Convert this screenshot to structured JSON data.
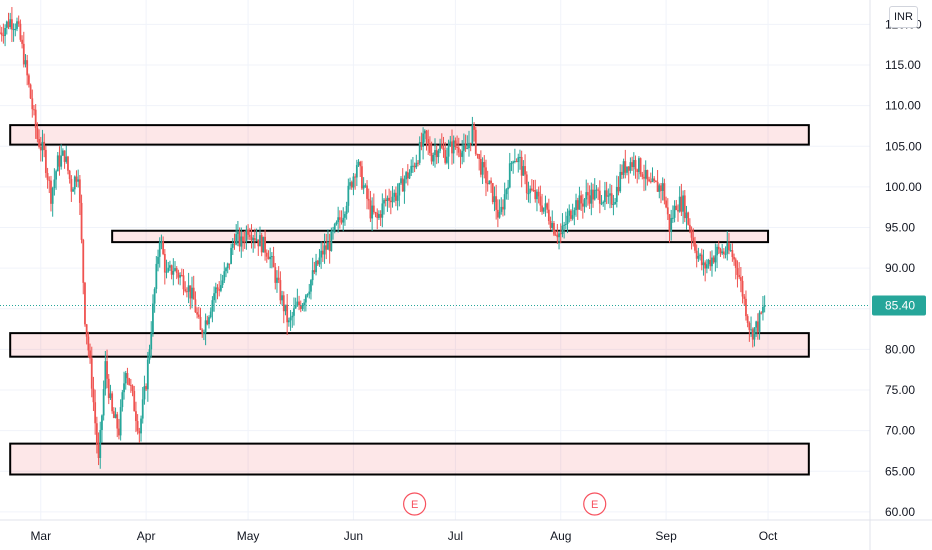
{
  "chart_data": {
    "type": "candlestick",
    "currency": "INR",
    "last_price": "85.40",
    "ylim": [
      59,
      123
    ],
    "y_ticks": [
      "60.00",
      "65.00",
      "70.00",
      "75.00",
      "80.00",
      "85.00",
      "90.00",
      "95.00",
      "100.00",
      "105.00",
      "110.00",
      "115.00",
      "120.00"
    ],
    "x_ticks": [
      {
        "label": "Mar",
        "day": 7
      },
      {
        "label": "Apr",
        "day": 38
      },
      {
        "label": "May",
        "day": 68
      },
      {
        "label": "Jun",
        "day": 99
      },
      {
        "label": "Jul",
        "day": 129
      },
      {
        "label": "Aug",
        "day": 160
      },
      {
        "label": "Sep",
        "day": 191
      },
      {
        "label": "Oct",
        "day": 221
      }
    ],
    "xlim_days": [
      -5,
      251
    ],
    "earnings_markers": [
      {
        "label": "E",
        "day": 117
      },
      {
        "label": "E",
        "day": 170
      }
    ],
    "zones": [
      {
        "top": 107.6,
        "bottom": 105.2,
        "x_start_day": -2,
        "x_end_day": 233
      },
      {
        "top": 94.6,
        "bottom": 93.2,
        "x_start_day": 28,
        "x_end_day": 221
      },
      {
        "top": 82.0,
        "bottom": 79.1,
        "x_start_day": -2,
        "x_end_day": 233
      },
      {
        "top": 68.4,
        "bottom": 64.6,
        "x_start_day": -2,
        "x_end_day": 233
      }
    ],
    "price_path": [
      [
        -5,
        119
      ],
      [
        -2,
        120.5
      ],
      [
        0,
        120
      ],
      [
        2,
        116
      ],
      [
        4,
        111
      ],
      [
        6,
        106
      ],
      [
        8,
        104
      ],
      [
        10,
        99
      ],
      [
        12,
        103
      ],
      [
        14,
        104
      ],
      [
        16,
        100
      ],
      [
        18,
        102
      ],
      [
        20,
        84
      ],
      [
        22,
        76
      ],
      [
        24,
        66
      ],
      [
        26,
        78
      ],
      [
        28,
        72
      ],
      [
        30,
        70
      ],
      [
        32,
        78
      ],
      [
        34,
        74
      ],
      [
        36,
        70
      ],
      [
        38,
        76
      ],
      [
        40,
        85
      ],
      [
        42,
        94
      ],
      [
        44,
        89
      ],
      [
        46,
        90
      ],
      [
        48,
        89
      ],
      [
        50,
        88
      ],
      [
        52,
        86
      ],
      [
        54,
        82
      ],
      [
        56,
        84
      ],
      [
        58,
        87
      ],
      [
        60,
        88
      ],
      [
        62,
        90
      ],
      [
        64,
        94
      ],
      [
        66,
        93
      ],
      [
        68,
        95
      ],
      [
        70,
        94
      ],
      [
        72,
        93
      ],
      [
        74,
        92
      ],
      [
        76,
        89
      ],
      [
        78,
        86
      ],
      [
        80,
        83
      ],
      [
        82,
        85
      ],
      [
        84,
        86
      ],
      [
        86,
        88
      ],
      [
        88,
        90
      ],
      [
        90,
        92
      ],
      [
        92,
        93
      ],
      [
        94,
        95
      ],
      [
        96,
        97
      ],
      [
        98,
        100
      ],
      [
        100,
        103
      ],
      [
        102,
        100
      ],
      [
        104,
        97
      ],
      [
        106,
        96
      ],
      [
        108,
        98
      ],
      [
        110,
        99
      ],
      [
        112,
        99
      ],
      [
        114,
        101
      ],
      [
        116,
        102
      ],
      [
        118,
        104
      ],
      [
        120,
        106
      ],
      [
        122,
        104
      ],
      [
        124,
        105
      ],
      [
        126,
        104
      ],
      [
        128,
        105
      ],
      [
        130,
        105
      ],
      [
        132,
        104
      ],
      [
        134,
        107
      ],
      [
        136,
        103
      ],
      [
        138,
        101
      ],
      [
        140,
        99
      ],
      [
        142,
        96
      ],
      [
        144,
        100
      ],
      [
        146,
        104
      ],
      [
        148,
        103
      ],
      [
        150,
        100
      ],
      [
        152,
        99
      ],
      [
        154,
        98
      ],
      [
        156,
        97
      ],
      [
        158,
        95
      ],
      [
        160,
        94
      ],
      [
        162,
        96
      ],
      [
        164,
        98
      ],
      [
        166,
        98
      ],
      [
        168,
        99
      ],
      [
        170,
        99
      ],
      [
        172,
        99
      ],
      [
        174,
        98
      ],
      [
        176,
        99
      ],
      [
        178,
        102
      ],
      [
        180,
        103
      ],
      [
        182,
        103
      ],
      [
        184,
        102
      ],
      [
        186,
        100
      ],
      [
        188,
        100
      ],
      [
        190,
        100
      ],
      [
        192,
        95
      ],
      [
        194,
        98
      ],
      [
        196,
        98
      ],
      [
        198,
        95
      ],
      [
        200,
        92
      ],
      [
        202,
        90
      ],
      [
        204,
        91
      ],
      [
        206,
        92
      ],
      [
        208,
        92
      ],
      [
        210,
        92
      ],
      [
        212,
        90
      ],
      [
        214,
        86
      ],
      [
        216,
        82
      ],
      [
        218,
        83
      ],
      [
        220,
        85.4
      ]
    ]
  }
}
